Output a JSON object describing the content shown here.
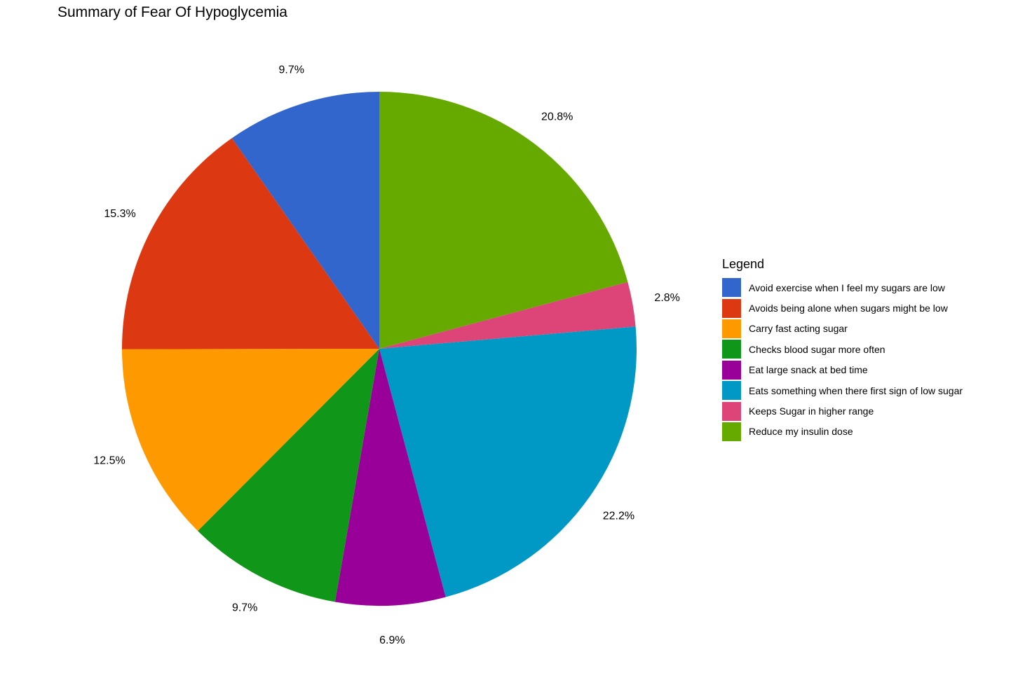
{
  "chart_data": {
    "type": "pie",
    "title": "Summary of Fear Of Hypoglycemia",
    "legend_title": "Legend",
    "legend_position": "right",
    "slices": [
      {
        "label": "Reduce my insulin dose",
        "value": 20.8,
        "display": "20.8%",
        "color": "#66aa00"
      },
      {
        "label": "Keeps Sugar in higher range",
        "value": 2.8,
        "display": "2.8%",
        "color": "#dd4477"
      },
      {
        "label": "Eats something when there first sign of low sugar",
        "value": 22.2,
        "display": "22.2%",
        "color": "#0099c6"
      },
      {
        "label": "Eat large snack at bed time",
        "value": 6.9,
        "display": "6.9%",
        "color": "#990099"
      },
      {
        "label": "Checks blood sugar more often",
        "value": 9.7,
        "display": "9.7%",
        "color": "#109618"
      },
      {
        "label": "Carry fast acting sugar",
        "value": 12.5,
        "display": "12.5%",
        "color": "#ff9900"
      },
      {
        "label": "Avoids being alone when sugars might be low",
        "value": 15.3,
        "display": "15.3%",
        "color": "#dc3912"
      },
      {
        "label": "Avoid exercise when I feel my sugars are low",
        "value": 9.7,
        "display": "9.7%",
        "color": "#3366cc"
      }
    ],
    "legend_order": [
      "Avoid exercise when I feel my sugars are low",
      "Avoids being alone when sugars might be low",
      "Carry fast acting sugar",
      "Checks blood sugar more often",
      "Eat large snack at bed time",
      "Eats something when there first sign of low sugar",
      "Keeps Sugar in higher range",
      "Reduce my insulin dose"
    ]
  }
}
